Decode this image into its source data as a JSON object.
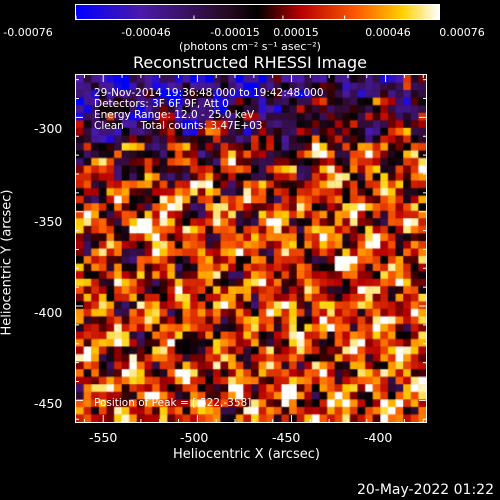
{
  "colorbar": {
    "ticks": [
      "-0.00076",
      "-0.00046",
      "-0.00015",
      "0.00015",
      "0.00046",
      "0.00076"
    ],
    "units": "(photons cm⁻² s⁻¹ asec⁻²)"
  },
  "chart_data": {
    "type": "heatmap",
    "title": "Reconstructed RHESSI Image",
    "xlabel": "Heliocentric X (arcsec)",
    "ylabel": "Heliocentric Y (arcsec)",
    "xlim": [
      -565,
      -378
    ],
    "ylim": [
      -462,
      -277
    ],
    "xticks": [
      "-550",
      "-500",
      "-450",
      "-400"
    ],
    "xtick_values": [
      -550,
      -500,
      -450,
      -400
    ],
    "yticks": [
      "-300",
      "-350",
      "-400",
      "-450"
    ],
    "ytick_values": [
      -300,
      -350,
      -400,
      -450
    ],
    "value_range": [
      -0.00076,
      0.00076
    ],
    "peak": [
      -522,
      -358
    ]
  },
  "annotation": {
    "time": "29-Nov-2014 19:36:48.000 to 19:42:48.000",
    "detectors": "Detectors: 3F 6F 9F, Att 0",
    "energy": "Energy Range: 12.0 - 25.0 keV",
    "clean": "Clean     Total counts: 3.47E+03",
    "peak": "Position of Peak = [-522,-358]"
  },
  "timestamp": "20-May-2022 01:22"
}
